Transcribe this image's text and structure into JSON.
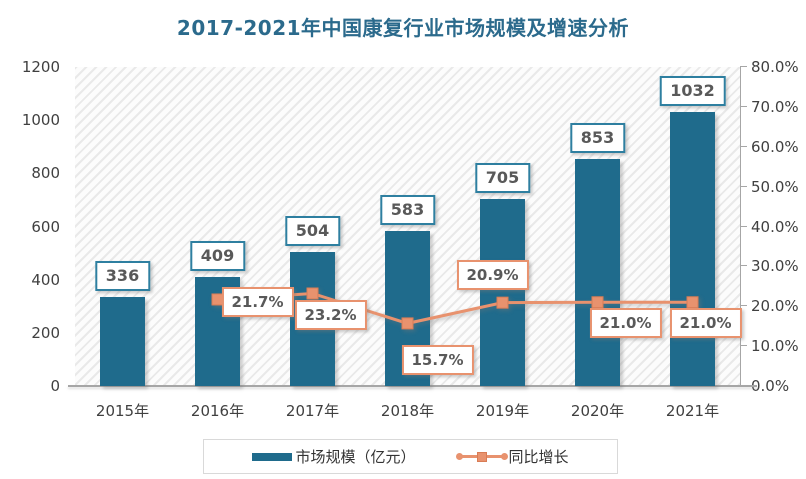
{
  "title": "2017-2021年中国康复行业市场规模及增速分析",
  "colors": {
    "bar": "#1f6b8c",
    "line": "#e8926e",
    "line_marker_border": "#d97c55",
    "title": "#2b6a8c",
    "axis_text": "#404040",
    "label_text": "#595959",
    "bar_label_border": "#2e7fa0",
    "axis_line": "#a6a6a6"
  },
  "chart_data": {
    "type": "bar",
    "subtype": "bar-line-combo",
    "title": "2017-2021年中国康复行业市场规模及增速分析",
    "categories": [
      "2015年",
      "2016年",
      "2017年",
      "2018年",
      "2019年",
      "2020年",
      "2021年"
    ],
    "series": [
      {
        "name": "市场规模（亿元）",
        "type": "bar",
        "axis": "left",
        "values": [
          336,
          409,
          504,
          583,
          705,
          853,
          1032
        ],
        "value_labels": [
          "336",
          "409",
          "504",
          "583",
          "705",
          "853",
          "1032"
        ]
      },
      {
        "name": "同比增长",
        "type": "line",
        "axis": "right",
        "values": [
          null,
          21.7,
          23.2,
          15.7,
          20.9,
          21.0,
          21.0
        ],
        "value_labels": [
          null,
          "21.7%",
          "23.2%",
          "15.7%",
          "20.9%",
          "21.0%",
          "21.0%"
        ],
        "label_offsets": [
          null,
          [
            40,
            3
          ],
          [
            18,
            22
          ],
          [
            30,
            37
          ],
          [
            -10,
            -28
          ],
          [
            28,
            21
          ],
          [
            13,
            21
          ]
        ]
      }
    ],
    "left_axis": {
      "min": 0,
      "max": 1200,
      "step": 200,
      "tick_labels": [
        "0",
        "200",
        "400",
        "600",
        "800",
        "1000",
        "1200"
      ]
    },
    "right_axis": {
      "min": 0,
      "max": 80,
      "step": 10,
      "tick_labels": [
        "0.0%",
        "10.0%",
        "20.0%",
        "30.0%",
        "40.0%",
        "50.0%",
        "60.0%",
        "70.0%",
        "80.0%"
      ]
    },
    "grid": false,
    "plot_background": "diagonal-hatch",
    "legend": {
      "position": "bottom",
      "items": [
        "市场规模（亿元）",
        "同比增长"
      ]
    }
  }
}
